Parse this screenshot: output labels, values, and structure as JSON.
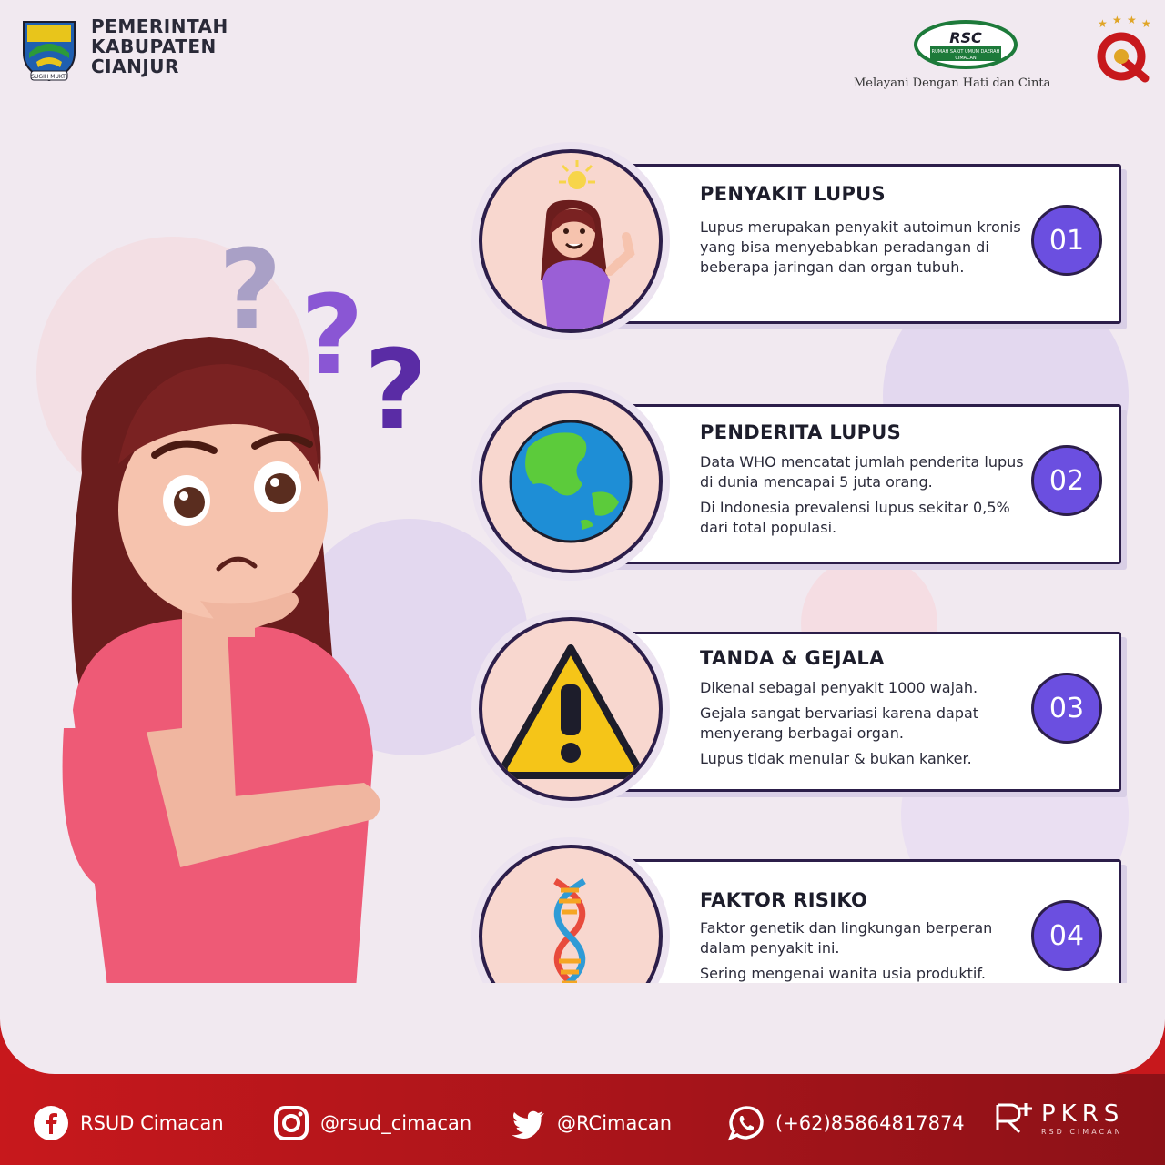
{
  "header": {
    "gov_lines": [
      "PEMERINTAH",
      "KABUPATEN",
      "CIANJUR"
    ],
    "emblem_motto": "SUGIH MUKTI",
    "rsc_abbr": "RSC",
    "rsc_name_line1": "RUMAH SAKIT UMUM DAERAH",
    "rsc_name_line2": "CIMACAN",
    "tagline": "Melayani Dengan Hati dan Cinta"
  },
  "cards": [
    {
      "title": "PENYAKIT LUPUS",
      "number": "01",
      "icon": "woman-idea-icon",
      "paragraphs": [
        "Lupus merupakan penyakit autoimun kronis yang bisa menyebabkan peradangan di beberapa jaringan dan organ tubuh."
      ]
    },
    {
      "title": "PENDERITA LUPUS",
      "number": "02",
      "icon": "globe-icon",
      "paragraphs": [
        "Data WHO mencatat jumlah penderita lupus di dunia mencapai 5 juta orang.",
        "Di Indonesia prevalensi lupus sekitar 0,5% dari total populasi."
      ]
    },
    {
      "title": "TANDA & GEJALA",
      "number": "03",
      "icon": "warning-icon",
      "paragraphs": [
        "Dikenal sebagai penyakit 1000 wajah.",
        "Gejala sangat bervariasi karena dapat menyerang berbagai organ.",
        "Lupus tidak menular & bukan kanker."
      ]
    },
    {
      "title": "FAKTOR RISIKO",
      "number": "04",
      "icon": "dna-icon",
      "paragraphs": [
        "Faktor genetik dan lingkungan berperan dalam penyakit ini.",
        "Sering mengenai wanita usia produktif."
      ]
    }
  ],
  "footer": {
    "facebook": "RSUD Cimacan",
    "instagram": "@rsud_cimacan",
    "twitter": "@RCimacan",
    "whatsapp": "(+62)85864817874",
    "pkrs": "PKRS",
    "pkrs_sub": "RSD CIMACAN"
  },
  "colors": {
    "accent_purple": "#6b4fe0",
    "outline": "#2c1e4a",
    "footer_red": "#c7181c"
  }
}
